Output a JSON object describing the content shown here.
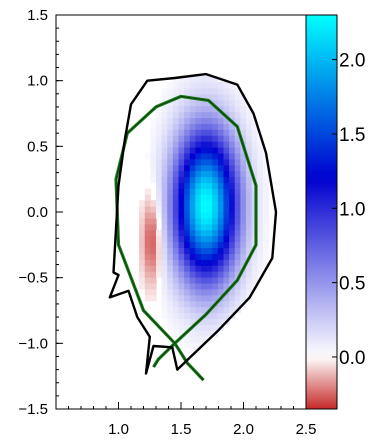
{
  "chart_data": {
    "type": "heatmap",
    "title": "",
    "xlabel": "",
    "ylabel": "",
    "xlim": [
      0.5,
      2.5
    ],
    "ylim": [
      -1.5,
      1.5
    ],
    "x_ticks": [
      "1.0",
      "1.5",
      "2.0",
      "2.5"
    ],
    "y_ticks": [
      "1.5",
      "1.0",
      "0.5",
      "0.0",
      "−0.5",
      "−1.0",
      "−1.5"
    ],
    "colorbar": {
      "range": [
        -0.35,
        2.3
      ],
      "ticks": [
        "2.0",
        "1.5",
        "1.0",
        "0.5",
        "0.0"
      ],
      "colormap": [
        "#c62828",
        "#ffffff",
        "#0000d0",
        "#00ffff"
      ]
    },
    "field_features": [
      {
        "kind": "positive peak",
        "x": 1.7,
        "y": 0.05,
        "value": 2.3
      },
      {
        "kind": "negative lobe",
        "x": 1.27,
        "y": -0.2,
        "value": -0.35
      }
    ],
    "wall_boundary": [
      [
        1.45,
        1.02
      ],
      [
        1.7,
        1.05
      ],
      [
        1.95,
        0.97
      ],
      [
        2.08,
        0.75
      ],
      [
        2.18,
        0.45
      ],
      [
        2.26,
        0.0
      ],
      [
        2.23,
        -0.35
      ],
      [
        2.05,
        -0.65
      ],
      [
        1.8,
        -0.9
      ],
      [
        1.58,
        -1.1
      ],
      [
        1.47,
        -1.2
      ],
      [
        1.43,
        -1.03
      ],
      [
        1.28,
        -1.02
      ],
      [
        1.22,
        -1.23
      ],
      [
        1.25,
        -0.95
      ],
      [
        1.15,
        -0.8
      ],
      [
        1.08,
        -0.6
      ],
      [
        0.93,
        -0.65
      ],
      [
        1.0,
        -0.48
      ],
      [
        0.96,
        -0.46
      ],
      [
        1.0,
        0.2
      ],
      [
        1.05,
        0.55
      ],
      [
        1.1,
        0.82
      ],
      [
        1.23,
        1.0
      ]
    ],
    "separatrix": [
      [
        1.45,
        -1.0
      ],
      [
        1.2,
        -0.75
      ],
      [
        1.0,
        -0.25
      ],
      [
        0.98,
        0.25
      ],
      [
        1.07,
        0.6
      ],
      [
        1.3,
        0.8
      ],
      [
        1.5,
        0.88
      ],
      [
        1.72,
        0.85
      ],
      [
        1.95,
        0.65
      ],
      [
        2.1,
        0.2
      ],
      [
        2.1,
        -0.25
      ],
      [
        1.95,
        -0.52
      ],
      [
        1.7,
        -0.78
      ],
      [
        1.45,
        -1.0
      ],
      [
        1.55,
        -1.15
      ],
      [
        1.68,
        -1.28
      ]
    ],
    "separatrix_leg": [
      [
        1.45,
        -1.0
      ],
      [
        1.32,
        -1.12
      ],
      [
        1.28,
        -1.18
      ]
    ],
    "series": [
      {
        "values": [],
        "color": "#1a7a1a"
      },
      {
        "values": [],
        "color": "#000000"
      }
    ],
    "grid": false,
    "legend": "none"
  }
}
